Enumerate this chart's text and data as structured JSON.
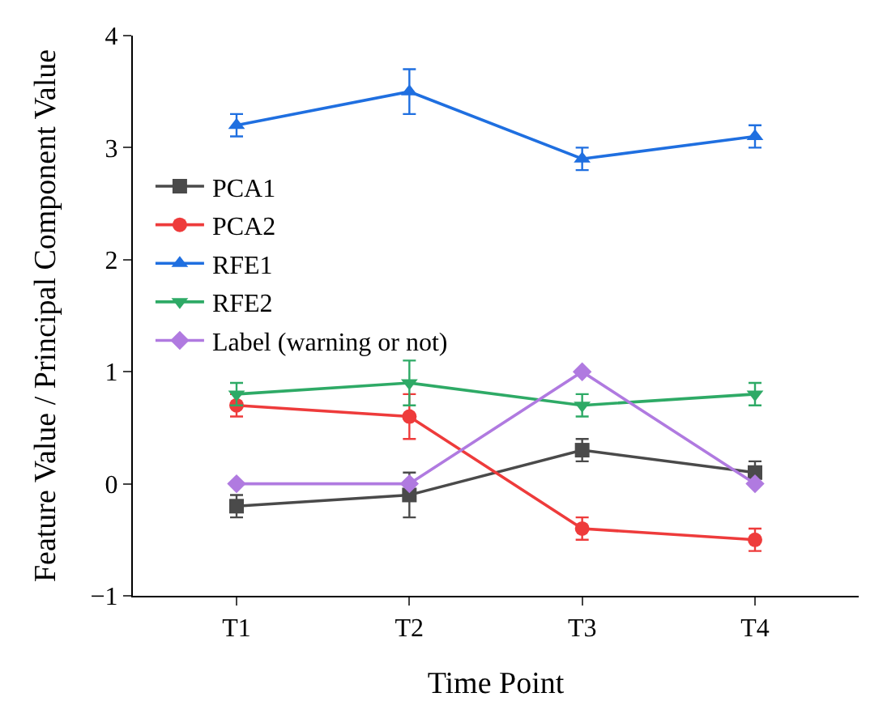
{
  "chart_data": {
    "type": "line",
    "xlabel": "Time Point",
    "ylabel": "Feature Value / Principal Component Value",
    "categories": [
      "T1",
      "T2",
      "T3",
      "T4"
    ],
    "ylim": [
      -1,
      4
    ],
    "yticks": [
      -1,
      0,
      1,
      2,
      3,
      4
    ],
    "grid": false,
    "legend": "left",
    "series": [
      {
        "name": "PCA1",
        "color": "#4a4a4a",
        "marker": "square",
        "values": [
          -0.2,
          -0.1,
          0.3,
          0.1
        ],
        "errors": [
          0.1,
          0.2,
          0.1,
          0.1
        ]
      },
      {
        "name": "PCA2",
        "color": "#ee3b3b",
        "marker": "circle",
        "values": [
          0.7,
          0.6,
          -0.4,
          -0.5
        ],
        "errors": [
          0.1,
          0.2,
          0.1,
          0.1
        ]
      },
      {
        "name": "RFE1",
        "color": "#1f6fe0",
        "marker": "triangle",
        "values": [
          3.2,
          3.5,
          2.9,
          3.1
        ],
        "errors": [
          0.1,
          0.2,
          0.1,
          0.1
        ]
      },
      {
        "name": "RFE2",
        "color": "#2eaa66",
        "marker": "triangle-down",
        "values": [
          0.8,
          0.9,
          0.7,
          0.8
        ],
        "errors": [
          0.1,
          0.2,
          0.1,
          0.1
        ]
      },
      {
        "name": "Label (warning or not)",
        "color": "#b07ae0",
        "marker": "diamond",
        "values": [
          0,
          0,
          1,
          0
        ]
      }
    ]
  }
}
